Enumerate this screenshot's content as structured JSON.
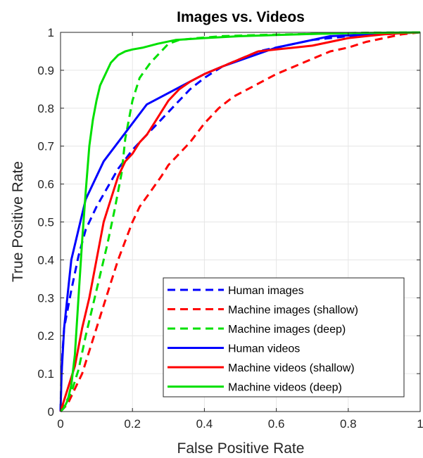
{
  "chart_data": {
    "type": "line",
    "title": "Images vs. Videos",
    "xlabel": "False Positive Rate",
    "ylabel": "True Positive Rate",
    "xlim": [
      0,
      1
    ],
    "ylim": [
      0,
      1
    ],
    "xticks": [
      "0",
      "0.2",
      "0.4",
      "0.6",
      "0.8",
      "1"
    ],
    "yticks": [
      "0",
      "0.1",
      "0.2",
      "0.3",
      "0.4",
      "0.5",
      "0.6",
      "0.7",
      "0.8",
      "0.9",
      "1"
    ],
    "grid": true,
    "legend_position": "bottom-right",
    "series": [
      {
        "name": "Human images",
        "color": "#0000ff",
        "dash": "dashed",
        "x": [
          0,
          0.002,
          0.005,
          0.01,
          0.02,
          0.03,
          0.05,
          0.07,
          0.1,
          0.13,
          0.16,
          0.2,
          0.24,
          0.28,
          0.32,
          0.36,
          0.4,
          0.45,
          0.5,
          0.55,
          0.6,
          0.65,
          0.7,
          0.8,
          0.9,
          1.0
        ],
        "y": [
          0,
          0.08,
          0.15,
          0.22,
          0.27,
          0.32,
          0.41,
          0.48,
          0.54,
          0.59,
          0.64,
          0.69,
          0.73,
          0.77,
          0.81,
          0.85,
          0.88,
          0.91,
          0.93,
          0.95,
          0.96,
          0.97,
          0.98,
          0.99,
          0.995,
          1.0
        ]
      },
      {
        "name": "Machine images (shallow)",
        "color": "#ff0000",
        "dash": "dashed",
        "x": [
          0,
          0.02,
          0.04,
          0.06,
          0.08,
          0.1,
          0.12,
          0.14,
          0.16,
          0.18,
          0.2,
          0.22,
          0.25,
          0.28,
          0.3,
          0.33,
          0.36,
          0.4,
          0.44,
          0.48,
          0.52,
          0.56,
          0.6,
          0.65,
          0.7,
          0.75,
          0.8,
          0.85,
          0.9,
          0.95,
          1.0
        ],
        "y": [
          0,
          0.02,
          0.06,
          0.1,
          0.16,
          0.22,
          0.28,
          0.34,
          0.4,
          0.45,
          0.5,
          0.54,
          0.58,
          0.62,
          0.65,
          0.68,
          0.71,
          0.76,
          0.8,
          0.83,
          0.85,
          0.87,
          0.89,
          0.91,
          0.93,
          0.95,
          0.96,
          0.975,
          0.985,
          0.995,
          1.0
        ]
      },
      {
        "name": "Machine images (deep)",
        "color": "#00e000",
        "dash": "dashed",
        "x": [
          0,
          0.03,
          0.05,
          0.07,
          0.09,
          0.11,
          0.13,
          0.15,
          0.17,
          0.18,
          0.2,
          0.22,
          0.25,
          0.28,
          0.3,
          0.33,
          0.38,
          0.45,
          0.55,
          0.65,
          0.75,
          0.85,
          1.0
        ],
        "y": [
          0,
          0.05,
          0.11,
          0.2,
          0.28,
          0.36,
          0.44,
          0.53,
          0.63,
          0.72,
          0.82,
          0.88,
          0.92,
          0.95,
          0.97,
          0.98,
          0.985,
          0.99,
          0.993,
          0.995,
          0.997,
          0.999,
          1.0
        ]
      },
      {
        "name": "Human videos",
        "color": "#0000ff",
        "dash": "solid",
        "x": [
          0,
          0.003,
          0.01,
          0.03,
          0.07,
          0.12,
          0.24,
          0.4,
          0.45,
          0.6,
          0.75,
          1.0
        ],
        "y": [
          0,
          0.1,
          0.22,
          0.4,
          0.56,
          0.66,
          0.81,
          0.89,
          0.91,
          0.96,
          0.99,
          1.0
        ]
      },
      {
        "name": "Machine videos (shallow)",
        "color": "#ff0000",
        "dash": "solid",
        "x": [
          0,
          0.01,
          0.02,
          0.04,
          0.06,
          0.08,
          0.1,
          0.12,
          0.14,
          0.16,
          0.18,
          0.2,
          0.22,
          0.24,
          0.26,
          0.28,
          0.3,
          0.33,
          0.36,
          0.4,
          0.45,
          0.5,
          0.55,
          0.6,
          0.65,
          0.7,
          0.75,
          0.8,
          0.85,
          0.9,
          0.95,
          1.0
        ],
        "y": [
          0,
          0.03,
          0.06,
          0.12,
          0.22,
          0.3,
          0.4,
          0.5,
          0.56,
          0.62,
          0.66,
          0.68,
          0.71,
          0.73,
          0.76,
          0.79,
          0.82,
          0.85,
          0.87,
          0.89,
          0.91,
          0.93,
          0.95,
          0.955,
          0.96,
          0.965,
          0.975,
          0.985,
          0.99,
          0.995,
          0.998,
          1.0
        ]
      },
      {
        "name": "Machine videos (deep)",
        "color": "#00e000",
        "dash": "solid",
        "x": [
          0,
          0.01,
          0.02,
          0.03,
          0.04,
          0.05,
          0.06,
          0.07,
          0.08,
          0.09,
          0.1,
          0.11,
          0.12,
          0.13,
          0.14,
          0.16,
          0.18,
          0.2,
          0.23,
          0.27,
          0.32,
          0.4,
          0.5,
          0.6,
          0.7,
          0.8,
          0.9,
          1.0
        ],
        "y": [
          0,
          0.01,
          0.03,
          0.07,
          0.15,
          0.3,
          0.45,
          0.58,
          0.7,
          0.77,
          0.82,
          0.86,
          0.88,
          0.9,
          0.92,
          0.94,
          0.95,
          0.955,
          0.96,
          0.97,
          0.98,
          0.985,
          0.99,
          0.993,
          0.996,
          0.998,
          0.999,
          1.0
        ]
      }
    ]
  }
}
